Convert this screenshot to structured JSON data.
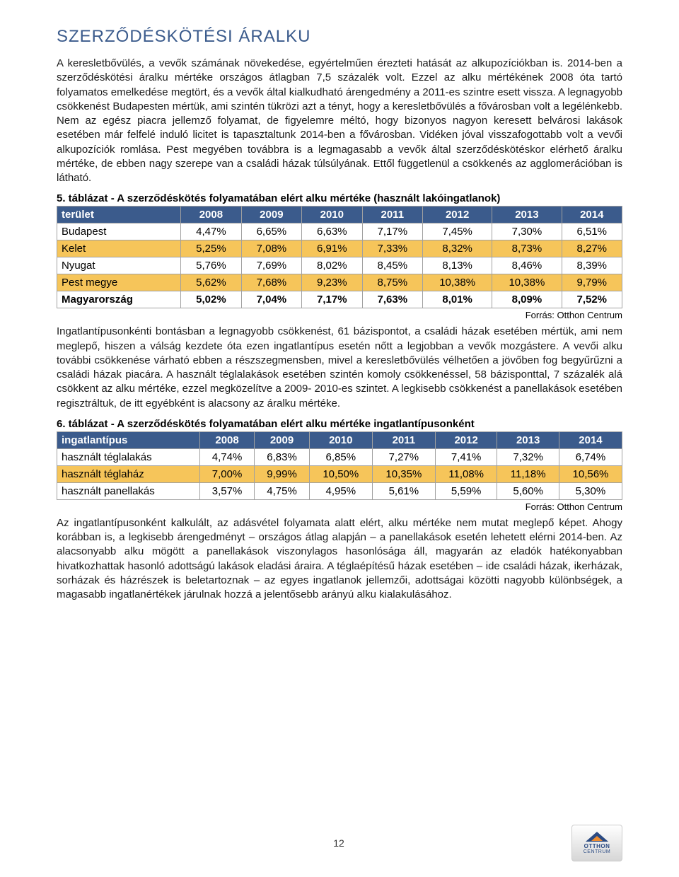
{
  "title": "SZERZŐDÉSKÖTÉSI ÁRALKU",
  "para1": "A keresletbővülés, a vevők számának növekedése, egyértelműen érezteti hatását az alkupozíciókban is. 2014-ben a szerződéskötési áralku mértéke országos átlagban 7,5 százalék volt. Ezzel az alku mértékének 2008 óta tartó folyamatos emelkedése megtört, és a vevők által kialkudható árengedmény a 2011-es szintre esett vissza. A legnagyobb csökkenést Budapesten mértük, ami szintén tükrözi azt a tényt, hogy a keresletbővülés a fővárosban volt a legélénkebb. Nem az egész piacra jellemző folyamat, de figyelemre méltó, hogy bizonyos nagyon keresett belvárosi lakások esetében már felfelé induló licitet is tapasztaltunk 2014-ben a fővárosban. Vidéken jóval visszafogottabb volt a vevői alkupozíciók romlása. Pest megyében továbbra is a legmagasabb a vevők által szerződéskötéskor elérhető áralku mértéke, de ebben nagy szerepe van a családi házak túlsúlyának. Ettől függetlenül a csökkenés az agglomerációban is látható.",
  "table5": {
    "caption": "5. táblázat - A szerződéskötés folyamatában elért alku mértéke (használt lakóingatlanok)",
    "headers": [
      "terület",
      "2008",
      "2009",
      "2010",
      "2011",
      "2012",
      "2013",
      "2014"
    ],
    "rows": [
      {
        "label": "Budapest",
        "cells": [
          "4,47%",
          "6,65%",
          "6,63%",
          "7,17%",
          "7,45%",
          "7,30%",
          "6,51%"
        ],
        "highlight": false,
        "bold": false
      },
      {
        "label": "Kelet",
        "cells": [
          "5,25%",
          "7,08%",
          "6,91%",
          "7,33%",
          "8,32%",
          "8,73%",
          "8,27%"
        ],
        "highlight": true,
        "bold": false
      },
      {
        "label": "Nyugat",
        "cells": [
          "5,76%",
          "7,69%",
          "8,02%",
          "8,45%",
          "8,13%",
          "8,46%",
          "8,39%"
        ],
        "highlight": false,
        "bold": false
      },
      {
        "label": "Pest megye",
        "cells": [
          "5,62%",
          "7,68%",
          "9,23%",
          "8,75%",
          "10,38%",
          "10,38%",
          "9,79%"
        ],
        "highlight": true,
        "bold": false
      },
      {
        "label": "Magyarország",
        "cells": [
          "5,02%",
          "7,04%",
          "7,17%",
          "7,63%",
          "8,01%",
          "8,09%",
          "7,52%"
        ],
        "highlight": false,
        "bold": true
      }
    ],
    "source": "Forrás: Otthon Centrum"
  },
  "para2": "Ingatlantípusonkénti bontásban a legnagyobb csökkenést, 61 bázispontot, a családi házak esetében mértük, ami nem meglepő, hiszen a válság kezdete óta ezen ingatlantípus esetén nőtt a legjobban a vevők mozgástere. A vevői alku további csökkenése várható ebben a részszegmensben, mivel a keresletbővülés vélhetően a jövőben fog begyűrűzni a családi házak piacára. A használt téglalakások esetében szintén komoly csökkenéssel, 58 bázisponttal, 7 százalék alá csökkent az alku mértéke, ezzel megközelítve a 2009- 2010-es szintet. A legkisebb csökkenést a panellakások esetében regisztráltuk, de itt egyébként is alacsony az áralku mértéke.",
  "table6": {
    "caption": "6. táblázat - A szerződéskötés folyamatában elért alku mértéke ingatlantípusonként",
    "headers": [
      "ingatlantípus",
      "2008",
      "2009",
      "2010",
      "2011",
      "2012",
      "2013",
      "2014"
    ],
    "rows": [
      {
        "label": "használt téglalakás",
        "cells": [
          "4,74%",
          "6,83%",
          "6,85%",
          "7,27%",
          "7,41%",
          "7,32%",
          "6,74%"
        ],
        "highlight": false
      },
      {
        "label": "használt téglaház",
        "cells": [
          "7,00%",
          "9,99%",
          "10,50%",
          "10,35%",
          "11,08%",
          "11,18%",
          "10,56%"
        ],
        "highlight": true
      },
      {
        "label": "használt panellakás",
        "cells": [
          "3,57%",
          "4,75%",
          "4,95%",
          "5,61%",
          "5,59%",
          "5,60%",
          "5,30%"
        ],
        "highlight": false
      }
    ],
    "source": "Forrás: Otthon Centrum"
  },
  "para3": "Az ingatlantípusonként kalkulált, az adásvétel folyamata alatt elért, alku mértéke nem mutat meglepő képet. Ahogy korábban is, a legkisebb árengedményt – országos átlag alapján – a panellakások esetén lehetett elérni 2014-ben. Az alacsonyabb alku mögött a panellakások viszonylagos hasonlósága áll, magyarán az eladók hatékonyabban hivatkozhattak hasonló adottságú lakások eladási áraira. A téglaépítésű házak esetében – ide családi házak, ikerházak, sorházak és házrészek is beletartoznak – az egyes ingatlanok jellemzői, adottságai közötti nagyobb különbségek, a magasabb ingatlanértékek járulnak hozzá a jelentősebb arányú alku kialakulásához.",
  "page_number": "12",
  "logo": {
    "line1": "OTTHON",
    "line2": "CENTRUM"
  },
  "colors": {
    "heading": "#3b5b8c",
    "th_bg": "#3b5b8c",
    "th_fg": "#ffffff",
    "row_highlight": "#f6c55a",
    "border": "#a0a0a0"
  }
}
